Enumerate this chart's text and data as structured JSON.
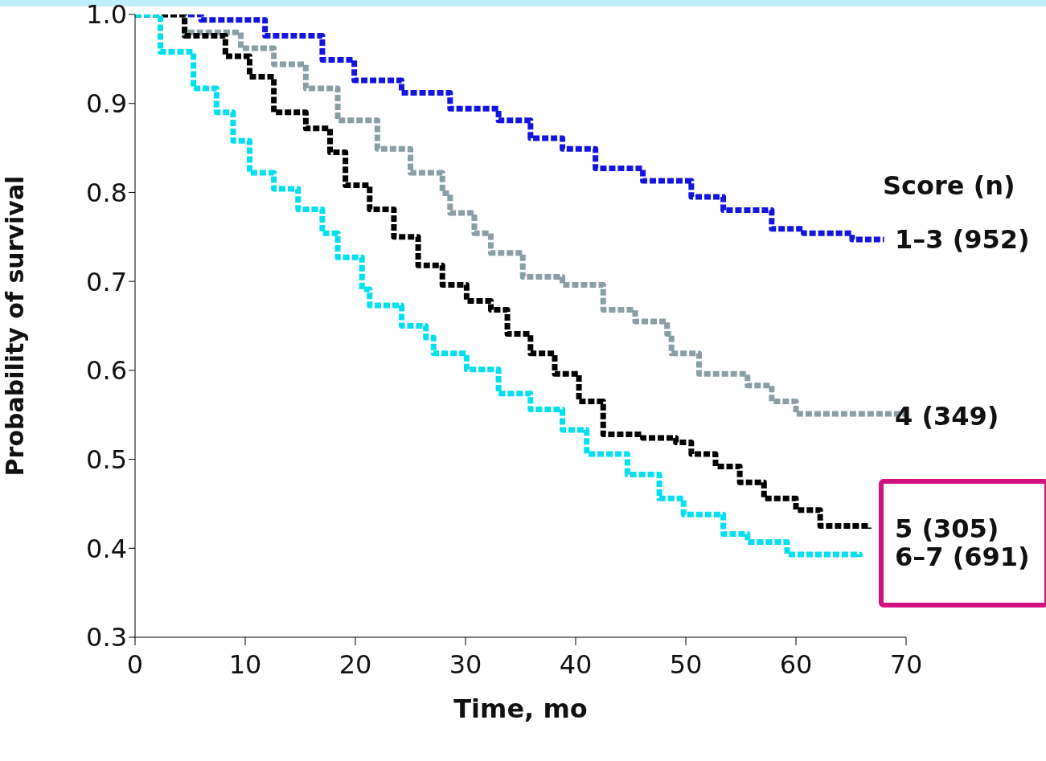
{
  "chart_data": {
    "type": "step",
    "xlabel": "Time, mo",
    "ylabel": "Probability of survival",
    "legend_title": "Score (n)",
    "xlim": [
      0,
      70
    ],
    "xticks": [
      0,
      10,
      20,
      30,
      40,
      50,
      60,
      70
    ],
    "ylim": [
      0.3,
      1.0
    ],
    "yticks": [
      0.3,
      0.4,
      0.5,
      0.6,
      0.7,
      0.8,
      0.9,
      {
        "value": 1.0,
        "label": "1.0"
      }
    ],
    "grid": false,
    "line_style": "dashed",
    "marker": "none",
    "series": [
      {
        "name": "1–3 (952)",
        "color": "#1414e0",
        "x": [
          0,
          6,
          11.8,
          17,
          19.9,
          24.2,
          28.6,
          33,
          35.9,
          38.8,
          41.8,
          46.1,
          50.5,
          53.4,
          57.8,
          60.7,
          65.1,
          68
        ],
        "values": [
          1.0,
          0.994,
          0.976,
          0.949,
          0.926,
          0.912,
          0.894,
          0.881,
          0.861,
          0.849,
          0.827,
          0.813,
          0.795,
          0.78,
          0.759,
          0.754,
          0.747,
          0.747
        ]
      },
      {
        "name": "4 (349)",
        "color": "#8a9ea6",
        "x": [
          0,
          4.5,
          9.6,
          12.6,
          15.5,
          18.4,
          22,
          25,
          27.9,
          28.6,
          30.8,
          32.3,
          35.2,
          38.8,
          42.5,
          45.4,
          48.3,
          48.7,
          51.2,
          55.6,
          57.8,
          60,
          65.1,
          69.9
        ],
        "values": [
          1.0,
          0.98,
          0.962,
          0.944,
          0.917,
          0.881,
          0.849,
          0.822,
          0.799,
          0.777,
          0.754,
          0.732,
          0.705,
          0.696,
          0.668,
          0.655,
          0.641,
          0.619,
          0.596,
          0.583,
          0.565,
          0.551,
          0.551,
          0.548
        ]
      },
      {
        "name": "5 (305)",
        "color": "#000000",
        "x": [
          0,
          4.5,
          8.2,
          10.4,
          12.6,
          15.5,
          17.7,
          19.1,
          21.3,
          23.5,
          25.7,
          27.9,
          30.1,
          32.3,
          33.8,
          35.9,
          38.1,
          40.3,
          42.5,
          46.1,
          49.1,
          50.5,
          52.7,
          54.9,
          57.1,
          60,
          62.2,
          66.6
        ],
        "values": [
          1.0,
          0.976,
          0.953,
          0.93,
          0.89,
          0.872,
          0.845,
          0.808,
          0.781,
          0.75,
          0.718,
          0.696,
          0.678,
          0.668,
          0.641,
          0.619,
          0.596,
          0.565,
          0.528,
          0.524,
          0.519,
          0.506,
          0.492,
          0.474,
          0.456,
          0.443,
          0.425,
          0.422
        ]
      },
      {
        "name": "6–7 (691)",
        "color": "#00e0ee",
        "x": [
          0,
          2.3,
          5.3,
          7.4,
          8.9,
          10.4,
          12.6,
          14.8,
          17,
          18.4,
          20.6,
          21.3,
          24.2,
          26.4,
          27.1,
          30.1,
          33,
          35.9,
          38.8,
          41,
          44.7,
          47.6,
          49.8,
          53.4,
          55.6,
          59.2,
          65.8
        ],
        "values": [
          1.0,
          0.958,
          0.917,
          0.89,
          0.858,
          0.822,
          0.804,
          0.781,
          0.754,
          0.727,
          0.691,
          0.673,
          0.65,
          0.637,
          0.619,
          0.601,
          0.574,
          0.556,
          0.533,
          0.506,
          0.483,
          0.456,
          0.438,
          0.416,
          0.407,
          0.393,
          0.39
        ]
      }
    ]
  }
}
